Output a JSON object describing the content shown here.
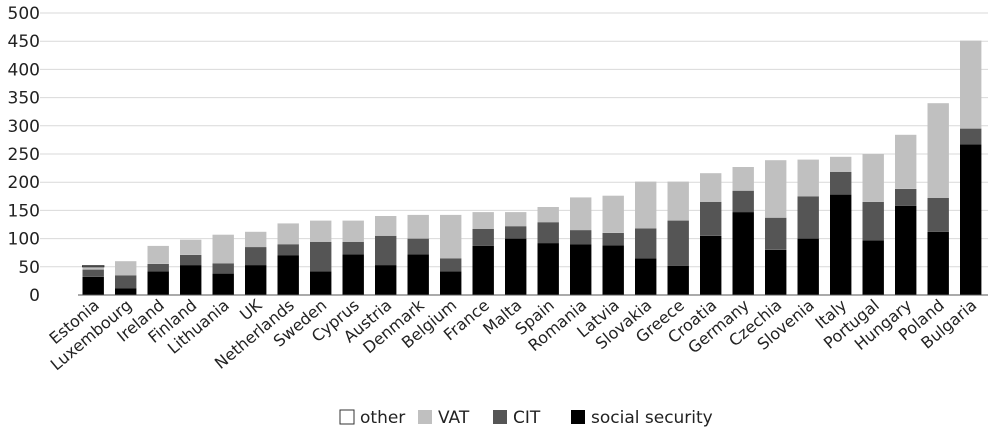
{
  "chart_data": {
    "type": "bar",
    "stacked": true,
    "title": "",
    "xlabel": "",
    "ylabel": "",
    "ylim": [
      0,
      500
    ],
    "yticks": [
      0,
      50,
      100,
      150,
      200,
      250,
      300,
      350,
      400,
      450,
      500
    ],
    "grid": true,
    "legend_position": "bottom",
    "categories": [
      "Estonia",
      "Luxembourg",
      "Ireland",
      "Finland",
      "Lithuania",
      "UK",
      "Netherlands",
      "Sweden",
      "Cyprus",
      "Austria",
      "Denmark",
      "Belgium",
      "France",
      "Malta",
      "Spain",
      "Romania",
      "Latvia",
      "Slovakia",
      "Greece",
      "Croatia",
      "Germany",
      "Czechia",
      "Slovenia",
      "Italy",
      "Portugal",
      "Hungary",
      "Poland",
      "Bulgaria"
    ],
    "series": [
      {
        "name": "social security",
        "color": "#000000",
        "values": [
          32,
          12,
          42,
          53,
          38,
          53,
          70,
          42,
          72,
          53,
          72,
          42,
          87,
          100,
          92,
          90,
          88,
          65,
          52,
          105,
          147,
          80,
          100,
          178,
          97,
          158,
          112,
          267
        ]
      },
      {
        "name": "CIT",
        "color": "#555555",
        "values": [
          13,
          23,
          13,
          18,
          18,
          32,
          20,
          52,
          22,
          52,
          28,
          23,
          30,
          22,
          37,
          25,
          22,
          53,
          80,
          60,
          38,
          57,
          75,
          40,
          68,
          30,
          60,
          28
        ]
      },
      {
        "name": "VAT",
        "color": "#c0c0c0",
        "values": [
          5,
          25,
          32,
          27,
          51,
          27,
          37,
          38,
          38,
          35,
          42,
          77,
          30,
          25,
          27,
          58,
          66,
          83,
          69,
          51,
          42,
          102,
          65,
          27,
          85,
          96,
          168,
          156
        ]
      },
      {
        "name": "other",
        "color": "#ffffff",
        "values": [
          2,
          0,
          0,
          0,
          0,
          0,
          0,
          0,
          0,
          0,
          0,
          0,
          0,
          0,
          0,
          0,
          0,
          0,
          0,
          0,
          0,
          0,
          0,
          0,
          0,
          0,
          0,
          0
        ]
      }
    ],
    "legend_order": [
      "other",
      "VAT",
      "CIT",
      "social security"
    ]
  }
}
